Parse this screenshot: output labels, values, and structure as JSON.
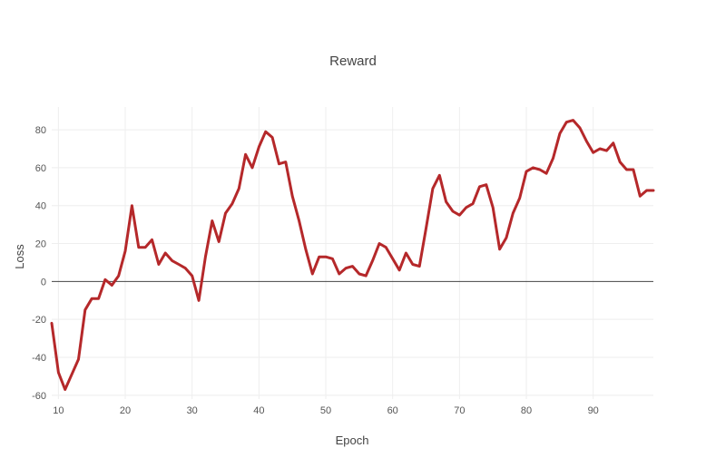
{
  "chart_data": {
    "type": "line",
    "title": "Reward",
    "xlabel": "Epoch",
    "ylabel": "Loss",
    "xlim": [
      9,
      99
    ],
    "ylim": [
      -62,
      92
    ],
    "x_ticks": [
      10,
      20,
      30,
      40,
      50,
      60,
      70,
      80,
      90
    ],
    "y_ticks": [
      -60,
      -40,
      -20,
      0,
      20,
      40,
      60,
      80
    ],
    "grid": true,
    "line_color": "#b5282a",
    "series": [
      {
        "x": [
          9,
          10,
          11,
          12,
          13,
          14,
          15,
          16,
          17,
          18,
          19,
          20,
          21,
          22,
          23,
          24,
          25,
          26,
          27,
          28,
          29,
          30,
          31,
          32,
          33,
          34,
          35,
          36,
          37,
          38,
          39,
          40,
          41,
          42,
          43,
          44,
          45,
          46,
          47,
          48,
          49,
          50,
          51,
          52,
          53,
          54,
          55,
          56,
          57,
          58,
          59,
          60,
          61,
          62,
          63,
          64,
          65,
          66,
          67,
          68,
          69,
          70,
          71,
          72,
          73,
          74,
          75,
          76,
          77,
          78,
          79,
          80,
          81,
          82,
          83,
          84,
          85,
          86,
          87,
          88,
          89,
          90,
          91,
          92,
          93,
          94,
          95,
          96,
          97,
          98,
          99
        ],
        "values": [
          -22,
          -48,
          -57,
          -49,
          -41,
          -15,
          -9,
          -9,
          1,
          -2,
          3,
          16,
          40,
          18,
          18,
          22,
          9,
          15,
          11,
          9,
          7,
          3,
          -10,
          13,
          32,
          21,
          36,
          41,
          49,
          67,
          60,
          71,
          79,
          76,
          62,
          63,
          45,
          32,
          17,
          4,
          13,
          13,
          12,
          4,
          7,
          8,
          4,
          3,
          11,
          20,
          18,
          12,
          6,
          15,
          9,
          8,
          28,
          49,
          56,
          42,
          37,
          35,
          39,
          41,
          50,
          51,
          39,
          17,
          23,
          36,
          44,
          58,
          60,
          59,
          57,
          65,
          78,
          84,
          85,
          81,
          74,
          68,
          70,
          69,
          73,
          63,
          59,
          59,
          45,
          48,
          48
        ]
      }
    ]
  }
}
